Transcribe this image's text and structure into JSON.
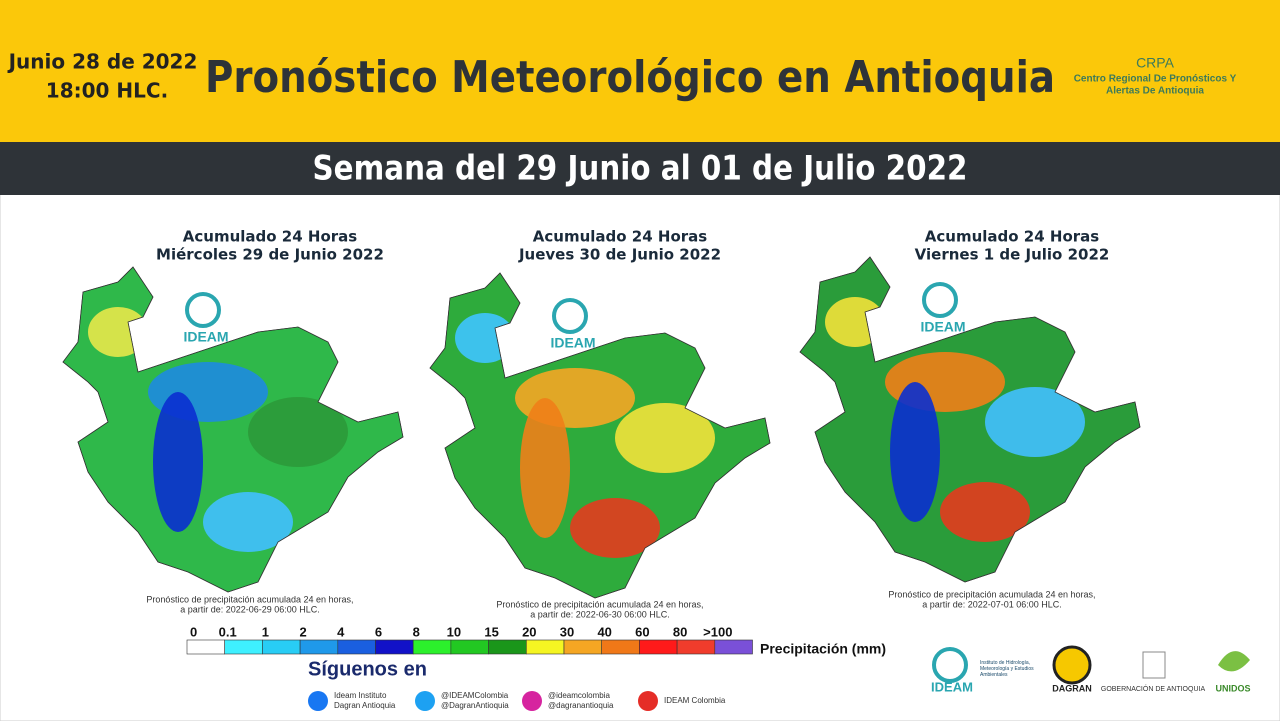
{
  "header": {
    "date": "Junio 28 de 2022",
    "time": "18:00 HLC.",
    "title": "Pronóstico Meteorológico en Antioquia",
    "org_short": "CRPA",
    "org_line1": "Centro Regional De Pronósticos Y",
    "org_line2": "Alertas De Antioquia"
  },
  "subtitle": "Semana del 29 Junio al 01 de Julio 2022",
  "maps": [
    {
      "title1": "Acumulado 24 Horas",
      "title2": "Miércoles 29 de Junio 2022",
      "logo": "IDEAM",
      "note1": "Pronóstico de precipitación acumulada 24 en horas,",
      "note2": "a partir de: 2022-06-29 06:00 HLC.",
      "base": "#2fb84a",
      "blobs": [
        "#1e8be0",
        "#0a2fd0",
        "#2c9a3a",
        "#41c0ff",
        "#e8e84a"
      ]
    },
    {
      "title1": "Acumulado 24 Horas",
      "title2": "Jueves 30 de Junio 2022",
      "logo": "IDEAM",
      "note1": "Pronóstico de precipitación acumulada 24 en horas,",
      "note2": "a partir de: 2022-06-30 06:00 HLC.",
      "base": "#2eab3c",
      "blobs": [
        "#f5a623",
        "#f08018",
        "#f2e23a",
        "#e43b1e",
        "#3fc4ff"
      ]
    },
    {
      "title1": "Acumulado 24 Horas",
      "title2": "Viernes 1 de Julio 2022",
      "logo": "IDEAM",
      "note1": "Pronóstico de precipitación acumulada 24 en horas,",
      "note2": "a partir de: 2022-07-01 06:00 HLC.",
      "base": "#2a9c3a",
      "blobs": [
        "#f08018",
        "#0a2fd0",
        "#41c0ff",
        "#e43b1e",
        "#f2e23a"
      ]
    }
  ],
  "legend": {
    "labels": [
      "0",
      "0.1",
      "1",
      "2",
      "4",
      "6",
      "8",
      "10",
      "15",
      "20",
      "30",
      "40",
      "60",
      "80",
      ">100"
    ],
    "colors": [
      "#ffffff",
      "#3ef0ff",
      "#28cdf5",
      "#1f99ea",
      "#1a5fe0",
      "#1212c8",
      "#2cf02c",
      "#22c822",
      "#1a961a",
      "#f5f522",
      "#f5a623",
      "#f07818",
      "#ff1a1a",
      "#f03c2c",
      "#a81010"
    ],
    "last_color": "#7a50d8",
    "unit": "Precipitación  (mm)"
  },
  "social": {
    "heading": "Síguenos en",
    "accounts": [
      [
        "Ideam Instituto",
        "Dagran Antioquia"
      ],
      [
        "@IDEAMColombia",
        "@DagranAntioquia"
      ],
      [
        "@ideamcolombia",
        "@dagranantioquia"
      ],
      [
        "IDEAM Colombia"
      ]
    ]
  },
  "logos": {
    "ideam": "IDEAM",
    "ideam_full": "Instituto de Hidrología, Meteorología y Estudios Ambientales",
    "dagran": "DAGRAN",
    "gob": "GOBERNACIÓN DE ANTIOQUIA",
    "unidos": "UNIDOS"
  }
}
